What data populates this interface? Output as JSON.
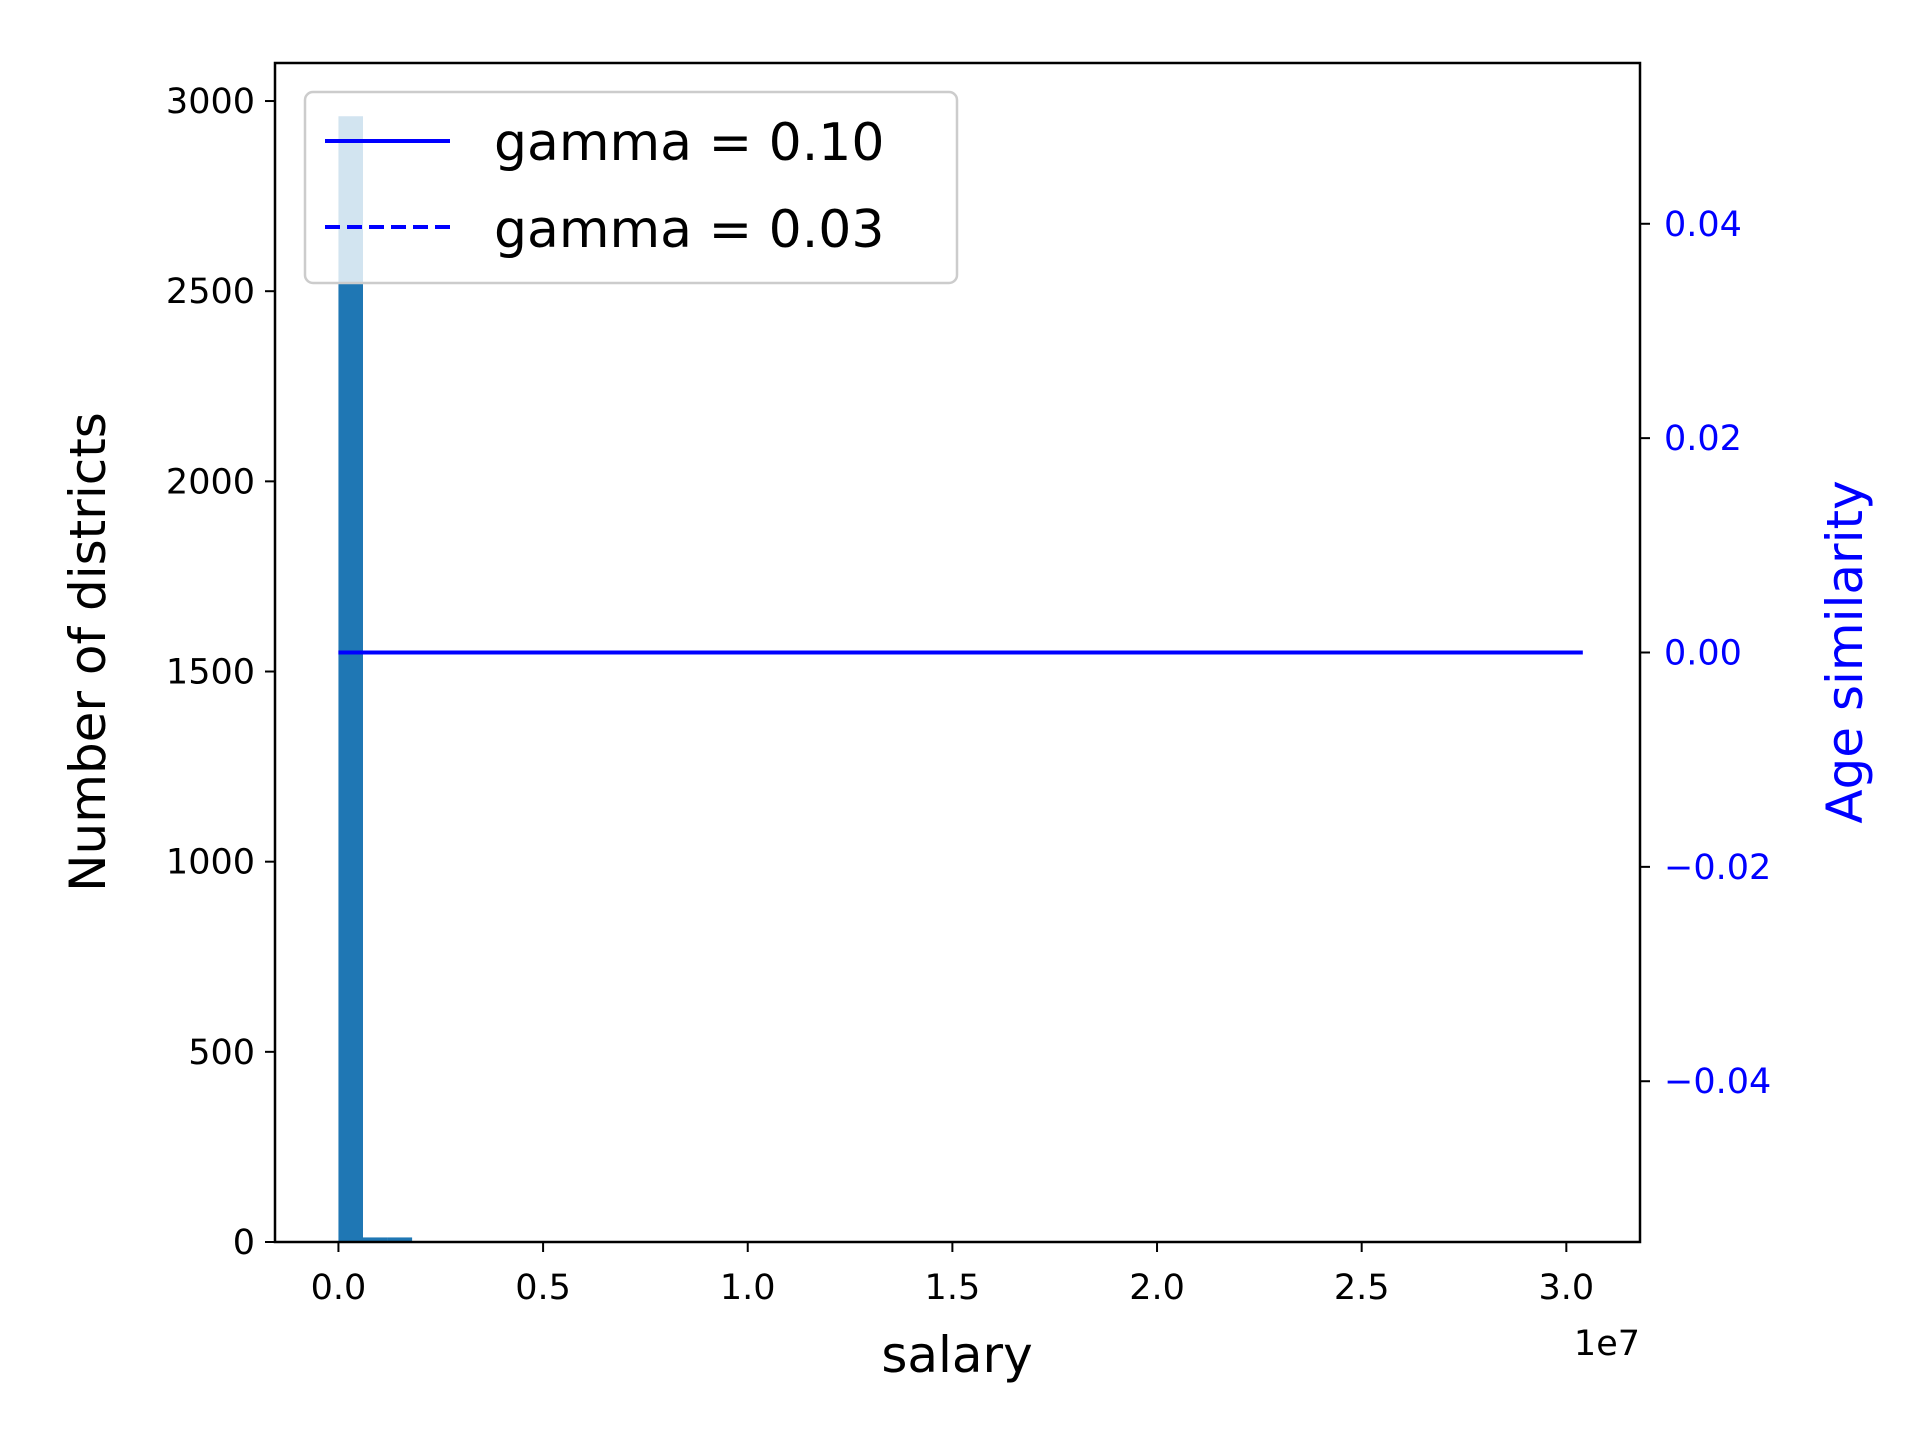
{
  "chart_data": {
    "type": "bar",
    "title": "",
    "xlabel": "salary",
    "ylabel": "Number of districts",
    "y2label": "Age similarity",
    "x_offset_label": "1e7",
    "xlim": [
      -0.155,
      3.18
    ],
    "ylim": [
      0,
      3100
    ],
    "y2lim": [
      -0.055,
      0.055
    ],
    "x_ticks": [
      {
        "value": 0.0,
        "label": "0.0"
      },
      {
        "value": 0.5,
        "label": "0.5"
      },
      {
        "value": 1.0,
        "label": "1.0"
      },
      {
        "value": 1.5,
        "label": "1.5"
      },
      {
        "value": 2.0,
        "label": "2.0"
      },
      {
        "value": 2.5,
        "label": "2.5"
      },
      {
        "value": 3.0,
        "label": "3.0"
      }
    ],
    "y_ticks": [
      {
        "value": 0,
        "label": "0"
      },
      {
        "value": 500,
        "label": "500"
      },
      {
        "value": 1000,
        "label": "1000"
      },
      {
        "value": 1500,
        "label": "1500"
      },
      {
        "value": 2000,
        "label": "2000"
      },
      {
        "value": 2500,
        "label": "2500"
      },
      {
        "value": 3000,
        "label": "3000"
      }
    ],
    "y2_ticks": [
      {
        "value": 0.04,
        "label": "0.04"
      },
      {
        "value": 0.02,
        "label": "0.02"
      },
      {
        "value": 0.0,
        "label": "0.00"
      },
      {
        "value": -0.02,
        "label": "−0.02"
      },
      {
        "value": -0.04,
        "label": "−0.04"
      }
    ],
    "histogram": {
      "color": "#1f77b4",
      "bin_width": 0.06,
      "bins": [
        {
          "x0": 0.0,
          "count": 2960
        },
        {
          "x0": 0.06,
          "count": 12
        },
        {
          "x0": 0.12,
          "count": 12
        }
      ]
    },
    "series": [
      {
        "name": "gamma = 0.10",
        "style": "solid",
        "color": "#0000ff",
        "x": [
          0.0,
          3.04
        ],
        "values": [
          0.0,
          0.0
        ]
      },
      {
        "name": "gamma = 0.03",
        "style": "dashed",
        "color": "#0000ff",
        "x": [
          0.0,
          3.04
        ],
        "values": [
          0.0,
          0.0
        ]
      }
    ],
    "legend_position": "top-left",
    "y2_color": "#0000ff",
    "grid": false
  }
}
